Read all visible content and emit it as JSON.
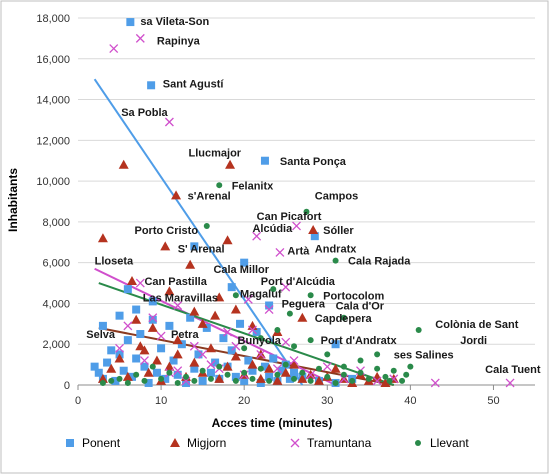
{
  "chart_data": {
    "type": "scatter",
    "title": "",
    "xlabel": "Acces time (minutes)",
    "ylabel": "Inhabitants",
    "xlim": [
      0,
      55
    ],
    "ylim": [
      0,
      18000
    ],
    "xticks": [
      0,
      10,
      20,
      30,
      40,
      50
    ],
    "yticks": [
      0,
      2000,
      4000,
      6000,
      8000,
      10000,
      12000,
      14000,
      16000,
      18000
    ],
    "ytick_labels": [
      "0",
      "2,000",
      "4,000",
      "6,000",
      "8,000",
      "10,000",
      "12,000",
      "14,000",
      "16,000",
      "18,000"
    ],
    "grid": "horizontal",
    "legend_position": "bottom",
    "series": [
      {
        "name": "Ponent",
        "marker": "square",
        "color": "#4f9de8",
        "points": [
          [
            6.3,
            17800
          ],
          [
            8.8,
            14700
          ],
          [
            22.5,
            11000
          ],
          [
            20,
            6000
          ],
          [
            14,
            6800
          ],
          [
            18.5,
            4800
          ],
          [
            23,
            3900
          ],
          [
            31,
            2000
          ],
          [
            28.5,
            7300
          ],
          [
            2,
            900
          ],
          [
            2.5,
            600
          ],
          [
            3,
            300
          ],
          [
            3.5,
            1100
          ],
          [
            4,
            1700
          ],
          [
            4.5,
            200
          ],
          [
            5,
            1500
          ],
          [
            5.5,
            700
          ],
          [
            6,
            2200
          ],
          [
            6.5,
            400
          ],
          [
            7,
            1300
          ],
          [
            7.5,
            2500
          ],
          [
            8,
            900
          ],
          [
            8.5,
            100
          ],
          [
            9,
            3200
          ],
          [
            9.5,
            600
          ],
          [
            10,
            1800
          ],
          [
            10.5,
            300
          ],
          [
            11,
            2900
          ],
          [
            11.5,
            1200
          ],
          [
            12,
            500
          ],
          [
            12.5,
            2000
          ],
          [
            13,
            100
          ],
          [
            13.5,
            3300
          ],
          [
            14,
            800
          ],
          [
            14.5,
            1500
          ],
          [
            15,
            200
          ],
          [
            15.5,
            2800
          ],
          [
            16,
            600
          ],
          [
            16.5,
            1100
          ],
          [
            17,
            300
          ],
          [
            17.5,
            2300
          ],
          [
            18,
            900
          ],
          [
            18.5,
            1700
          ],
          [
            19,
            400
          ],
          [
            19.5,
            3000
          ],
          [
            20,
            200
          ],
          [
            20.5,
            1200
          ],
          [
            21,
            700
          ],
          [
            21.5,
            2600
          ],
          [
            22,
            100
          ],
          [
            22.5,
            900
          ],
          [
            23,
            400
          ],
          [
            23.5,
            1300
          ],
          [
            24,
            200
          ],
          [
            24.5,
            700
          ],
          [
            25,
            1000
          ],
          [
            25.5,
            300
          ],
          [
            26,
            600
          ],
          [
            27,
            400
          ],
          [
            29,
            200
          ],
          [
            31,
            100
          ],
          [
            33,
            300
          ],
          [
            3,
            2900
          ],
          [
            5,
            3400
          ],
          [
            7,
            3700
          ],
          [
            9,
            4100
          ],
          [
            6,
            4700
          ]
        ]
      },
      {
        "name": "Migjorn",
        "marker": "triangle",
        "color": "#b5331f",
        "points": [
          [
            5.5,
            10800
          ],
          [
            18.3,
            10800
          ],
          [
            11.8,
            9300
          ],
          [
            18,
            7100
          ],
          [
            10.5,
            6800
          ],
          [
            13.5,
            5900
          ],
          [
            6.5,
            5100
          ],
          [
            28.3,
            7600
          ],
          [
            3,
            7200
          ],
          [
            11,
            4600
          ],
          [
            14,
            3600
          ],
          [
            15,
            3000
          ],
          [
            16.5,
            3400
          ],
          [
            12,
            2200
          ],
          [
            22,
            1500
          ],
          [
            8,
            1700
          ],
          [
            9,
            2800
          ],
          [
            7,
            3200
          ],
          [
            3,
            300
          ],
          [
            4,
            800
          ],
          [
            5,
            1300
          ],
          [
            6,
            400
          ],
          [
            7.5,
            1900
          ],
          [
            8.5,
            600
          ],
          [
            9.5,
            1200
          ],
          [
            10,
            200
          ],
          [
            11,
            900
          ],
          [
            12,
            1500
          ],
          [
            13,
            400
          ],
          [
            14,
            1100
          ],
          [
            15,
            600
          ],
          [
            16,
            1800
          ],
          [
            17,
            300
          ],
          [
            18,
            900
          ],
          [
            19,
            1400
          ],
          [
            20,
            500
          ],
          [
            21,
            1000
          ],
          [
            22,
            300
          ],
          [
            23,
            800
          ],
          [
            24,
            200
          ],
          [
            25,
            600
          ],
          [
            26,
            1000
          ],
          [
            27,
            300
          ],
          [
            28,
            500
          ],
          [
            29,
            200
          ],
          [
            30,
            400
          ],
          [
            31,
            800
          ],
          [
            32,
            300
          ],
          [
            33,
            100
          ],
          [
            34,
            500
          ],
          [
            35,
            200
          ],
          [
            36,
            400
          ],
          [
            37,
            100
          ],
          [
            38,
            300
          ],
          [
            17,
            4300
          ],
          [
            19,
            3700
          ],
          [
            21,
            2900
          ],
          [
            24,
            2600
          ],
          [
            27,
            3300
          ]
        ]
      },
      {
        "name": "Tramuntana",
        "marker": "x",
        "color": "#d04fcc",
        "points": [
          [
            4.3,
            16500
          ],
          [
            7.5,
            17000
          ],
          [
            11,
            12900
          ],
          [
            21.5,
            7300
          ],
          [
            26.3,
            7800
          ],
          [
            24.3,
            6500
          ],
          [
            25,
            4800
          ],
          [
            7.5,
            5000
          ],
          [
            12,
            3900
          ],
          [
            20.5,
            4200
          ],
          [
            23,
            3700
          ],
          [
            43,
            100
          ],
          [
            52,
            100
          ],
          [
            38,
            300
          ],
          [
            5,
            1800
          ],
          [
            8,
            1200
          ],
          [
            10,
            2400
          ],
          [
            12,
            700
          ],
          [
            14,
            1900
          ],
          [
            16,
            1000
          ],
          [
            18,
            2600
          ],
          [
            20,
            500
          ],
          [
            22,
            1500
          ],
          [
            24,
            800
          ],
          [
            26,
            1200
          ],
          [
            28,
            500
          ],
          [
            30,
            900
          ],
          [
            32,
            300
          ],
          [
            34,
            700
          ],
          [
            36,
            200
          ],
          [
            6,
            2900
          ],
          [
            9,
            3300
          ],
          [
            11,
            600
          ],
          [
            13,
            200
          ],
          [
            15,
            1500
          ],
          [
            17,
            800
          ],
          [
            19,
            1900
          ],
          [
            21,
            2700
          ],
          [
            25,
            2100
          ]
        ]
      },
      {
        "name": "Llevant",
        "marker": "circle",
        "color": "#2a8a4a",
        "points": [
          [
            17,
            9800
          ],
          [
            15.5,
            7800
          ],
          [
            27.5,
            8500
          ],
          [
            31,
            6100
          ],
          [
            23.5,
            4700
          ],
          [
            25.5,
            3500
          ],
          [
            28,
            4400
          ],
          [
            32,
            3300
          ],
          [
            41,
            2700
          ],
          [
            36,
            1500
          ],
          [
            39.5,
            500
          ],
          [
            40,
            900
          ],
          [
            38,
            700
          ],
          [
            37,
            400
          ],
          [
            39,
            200
          ],
          [
            35,
            300
          ],
          [
            34,
            600
          ],
          [
            33,
            200
          ],
          [
            32,
            500
          ],
          [
            31,
            100
          ],
          [
            30,
            400
          ],
          [
            29,
            800
          ],
          [
            28,
            200
          ],
          [
            27,
            600
          ],
          [
            26,
            300
          ],
          [
            25,
            1000
          ],
          [
            24,
            500
          ],
          [
            23,
            200
          ],
          [
            22,
            800
          ],
          [
            21,
            300
          ],
          [
            20,
            600
          ],
          [
            19,
            200
          ],
          [
            18,
            500
          ],
          [
            17,
            900
          ],
          [
            16,
            300
          ],
          [
            15,
            700
          ],
          [
            14,
            200
          ],
          [
            13,
            400
          ],
          [
            12,
            100
          ],
          [
            11,
            600
          ],
          [
            10,
            300
          ],
          [
            9,
            900
          ],
          [
            8,
            200
          ],
          [
            7,
            500
          ],
          [
            6,
            100
          ],
          [
            5,
            300
          ],
          [
            4,
            200
          ],
          [
            3,
            100
          ],
          [
            20,
            1800
          ],
          [
            22,
            2300
          ],
          [
            24,
            2700
          ],
          [
            26,
            1900
          ],
          [
            28,
            2200
          ],
          [
            30,
            1500
          ],
          [
            32,
            900
          ],
          [
            34,
            1200
          ],
          [
            36,
            800
          ],
          [
            37.5,
            200
          ],
          [
            19,
            4400
          ]
        ]
      }
    ],
    "trendlines": [
      {
        "series": "Ponent",
        "color": "#4f9de8",
        "from": [
          2,
          15000
        ],
        "to": [
          27,
          0
        ]
      },
      {
        "series": "Migjorn",
        "color": "#8b3a1f",
        "from": [
          2.5,
          2800
        ],
        "to": [
          38,
          0
        ]
      },
      {
        "series": "Tramuntana",
        "color": "#d04fcc",
        "from": [
          2,
          5700
        ],
        "to": [
          31,
          0
        ]
      },
      {
        "series": "Llevant",
        "color": "#2a8a4a",
        "from": [
          2.5,
          5000
        ],
        "to": [
          38,
          0
        ]
      }
    ],
    "annotations": [
      {
        "text": "sa Vileta-Son",
        "x": 7.5,
        "y": 17650
      },
      {
        "text": "Rapinya",
        "x": 9.5,
        "y": 16700
      },
      {
        "text": "Sant Agustí",
        "x": 10.2,
        "y": 14600
      },
      {
        "text": "Sa Pobla",
        "x": 5.2,
        "y": 13200
      },
      {
        "text": "Llucmajor",
        "x": 13.3,
        "y": 11200
      },
      {
        "text": "Santa Ponça",
        "x": 24.3,
        "y": 10800
      },
      {
        "text": "Felanitx",
        "x": 18.5,
        "y": 9600
      },
      {
        "text": "s'Arenal",
        "x": 13.2,
        "y": 9100
      },
      {
        "text": "Campos",
        "x": 28.5,
        "y": 9100
      },
      {
        "text": "Can Picafort",
        "x": 21.5,
        "y": 8100
      },
      {
        "text": "Porto Cristo",
        "x": 6.8,
        "y": 7400
      },
      {
        "text": "Alcúdia",
        "x": 21,
        "y": 7500
      },
      {
        "text": "Sóller",
        "x": 29.5,
        "y": 7400
      },
      {
        "text": "S' Arenal",
        "x": 12,
        "y": 6500
      },
      {
        "text": "Artà",
        "x": 25.2,
        "y": 6400
      },
      {
        "text": "Andratx",
        "x": 28.5,
        "y": 6500
      },
      {
        "text": "Lloseta",
        "x": 2,
        "y": 5900
      },
      {
        "text": "Cala Rajada",
        "x": 32.5,
        "y": 5900
      },
      {
        "text": "Cala Millor",
        "x": 16.3,
        "y": 5500
      },
      {
        "text": "Can Pastilla",
        "x": 8,
        "y": 4900
      },
      {
        "text": "Port d'Alcúdia",
        "x": 22,
        "y": 4900
      },
      {
        "text": "Magaluf",
        "x": 19.5,
        "y": 4300
      },
      {
        "text": "Portocolom",
        "x": 29.5,
        "y": 4200
      },
      {
        "text": "Las Maravillas",
        "x": 7.8,
        "y": 4100
      },
      {
        "text": "Peguera",
        "x": 24.5,
        "y": 3800
      },
      {
        "text": "Cala d'Or",
        "x": 31,
        "y": 3700
      },
      {
        "text": "Capdepera",
        "x": 28.5,
        "y": 3100
      },
      {
        "text": "Colònia de Sant",
        "x": 43,
        "y": 2800
      },
      {
        "text": "Selva",
        "x": 1,
        "y": 2300
      },
      {
        "text": "Petra",
        "x": 11.2,
        "y": 2300
      },
      {
        "text": "Bunyola",
        "x": 19.2,
        "y": 2000
      },
      {
        "text": "Port d'Andratx",
        "x": 29.2,
        "y": 2000
      },
      {
        "text": "Jordi",
        "x": 46,
        "y": 2000
      },
      {
        "text": "ses Salines",
        "x": 38,
        "y": 1300
      },
      {
        "text": "Cala Tuent",
        "x": 49,
        "y": 600
      }
    ]
  }
}
